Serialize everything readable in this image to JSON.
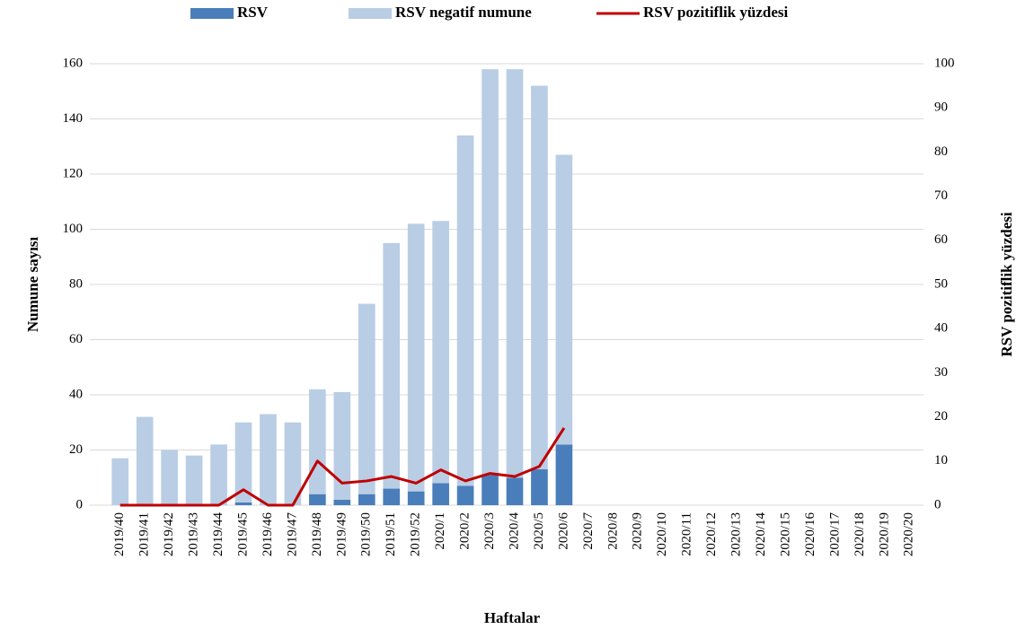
{
  "chart_data": {
    "type": "bar",
    "stacked": true,
    "y_label": "Numune sayısı",
    "y2_label": "RSV pozitiflik yüzdesi",
    "x_label": "Haftalar",
    "categories": [
      "2019/40",
      "2019/41",
      "2019/42",
      "2019/43",
      "2019/44",
      "2019/45",
      "2019/46",
      "2019/47",
      "2019/48",
      "2019/49",
      "2019/50",
      "2019/51",
      "2019/52",
      "2020/1",
      "2020/2",
      "2020/3",
      "2020/4",
      "2020/5",
      "2020/6",
      "2020/7",
      "2020/8",
      "2020/9",
      "2020/10",
      "2020/11",
      "2020/12",
      "2020/13",
      "2020/14",
      "2020/15",
      "2020/16",
      "2020/17",
      "2020/18",
      "2020/19",
      "2020/20"
    ],
    "series": [
      {
        "name": "RSV",
        "color": "#4a7ebb",
        "values": [
          0,
          0,
          0,
          0,
          0,
          1,
          0,
          0,
          4,
          2,
          4,
          6,
          5,
          8,
          7,
          11,
          10,
          13,
          22,
          null,
          null,
          null,
          null,
          null,
          null,
          null,
          null,
          null,
          null,
          null,
          null,
          null,
          null
        ]
      },
      {
        "name": "RSV negatif numune",
        "color": "#b9cde5",
        "values": [
          17,
          32,
          20,
          18,
          22,
          29,
          33,
          30,
          38,
          39,
          69,
          89,
          97,
          95,
          127,
          147,
          148,
          139,
          105,
          null,
          null,
          null,
          null,
          null,
          null,
          null,
          null,
          null,
          null,
          null,
          null,
          null,
          null
        ]
      },
      {
        "name": "RSV pozitiflik yüzdesi",
        "color": "#c00000",
        "type": "line",
        "axis": "y2",
        "values": [
          0,
          0,
          0,
          0,
          0,
          3.5,
          0,
          0,
          10,
          5,
          5.5,
          6.5,
          5,
          8,
          5.5,
          7.2,
          6.5,
          8.8,
          17.5,
          null,
          null,
          null,
          null,
          null,
          null,
          null,
          null,
          null,
          null,
          null,
          null,
          null,
          null
        ]
      }
    ],
    "ylim": [
      0,
      160
    ],
    "yticks": [
      0,
      20,
      40,
      60,
      80,
      100,
      120,
      140,
      160
    ],
    "y2lim": [
      0,
      100
    ],
    "y2ticks": [
      0,
      10,
      20,
      30,
      40,
      50,
      60,
      70,
      80,
      90,
      100
    ],
    "grid": true,
    "legend": "top"
  }
}
